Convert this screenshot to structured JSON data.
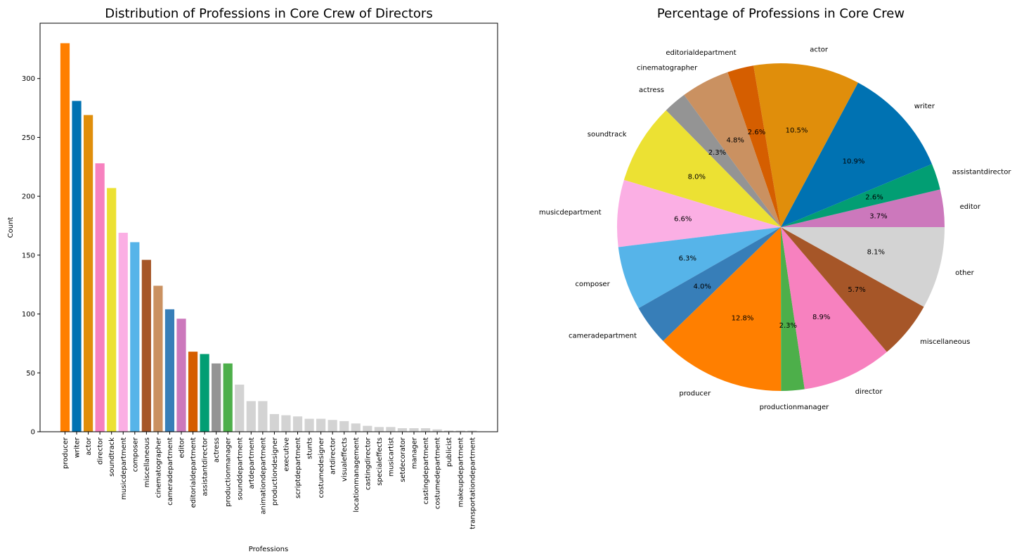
{
  "chart_data": [
    {
      "type": "bar",
      "title": "Distribution of Professions in Core Crew of Directors",
      "xlabel": "Professions",
      "ylabel": "Count",
      "ylim": [
        0,
        347
      ],
      "yticks": [
        0,
        50,
        100,
        150,
        200,
        250,
        300
      ],
      "grid": false,
      "categories": [
        "producer",
        "writer",
        "actor",
        "director",
        "soundtrack",
        "musicdepartment",
        "composer",
        "miscellaneous",
        "cinematographer",
        "cameradepartment",
        "editor",
        "editorialdepartment",
        "assistantdirector",
        "actress",
        "productionmanager",
        "sounddepartment",
        "artdepartment",
        "animationdepartment",
        "productiondesigner",
        "executive",
        "scriptdepartment",
        "stunts",
        "costumedesigner",
        "artdirector",
        "visualeffects",
        "locationmanagement",
        "castingdirector",
        "specialeffects",
        "musicartist",
        "setdecorator",
        "manager",
        "castingdepartment",
        "costumedepartment",
        "publicist",
        "makeupdepartment",
        "transportationdepartment"
      ],
      "values": [
        330,
        281,
        269,
        228,
        207,
        169,
        161,
        146,
        124,
        104,
        96,
        68,
        66,
        58,
        58,
        40,
        26,
        26,
        15,
        14,
        13,
        11,
        11,
        10,
        9,
        7,
        5,
        4,
        4,
        3,
        3,
        3,
        2,
        1,
        1,
        1
      ],
      "colors": [
        "#ff7f00",
        "#0072b2",
        "#e08e0b",
        "#f781bf",
        "#ece133",
        "#fbafe4",
        "#56b4e9",
        "#a65628",
        "#ca9161",
        "#377eb8",
        "#cc78bc",
        "#d55e00",
        "#029e73",
        "#949494",
        "#4daf4a",
        "#d3d3d3",
        "#d3d3d3",
        "#d3d3d3",
        "#d3d3d3",
        "#d3d3d3",
        "#d3d3d3",
        "#d3d3d3",
        "#d3d3d3",
        "#d3d3d3",
        "#d3d3d3",
        "#d3d3d3",
        "#d3d3d3",
        "#d3d3d3",
        "#d3d3d3",
        "#d3d3d3",
        "#d3d3d3",
        "#d3d3d3",
        "#d3d3d3",
        "#d3d3d3",
        "#d3d3d3",
        "#d3d3d3"
      ]
    },
    {
      "type": "pie",
      "title": "Percentage of Professions in Core Crew",
      "start_angle_deg": 0,
      "direction": "counterclockwise",
      "slices": [
        {
          "label": "editor",
          "value": 3.7,
          "pct_label": "3.7%",
          "color": "#cc78bc"
        },
        {
          "label": "assistantdirector",
          "value": 2.6,
          "pct_label": "2.6%",
          "color": "#029e73"
        },
        {
          "label": "writer",
          "value": 10.9,
          "pct_label": "10.9%",
          "color": "#0072b2"
        },
        {
          "label": "actor",
          "value": 10.5,
          "pct_label": "10.5%",
          "color": "#e08e0b"
        },
        {
          "label": "editorialdepartment",
          "value": 2.6,
          "pct_label": "2.6%",
          "color": "#d55e00"
        },
        {
          "label": "cinematographer",
          "value": 4.8,
          "pct_label": "4.8%",
          "color": "#ca9161"
        },
        {
          "label": "actress",
          "value": 2.3,
          "pct_label": "2.3%",
          "color": "#949494"
        },
        {
          "label": "soundtrack",
          "value": 8.0,
          "pct_label": "8.0%",
          "color": "#ece133"
        },
        {
          "label": "musicdepartment",
          "value": 6.6,
          "pct_label": "6.6%",
          "color": "#fbafe4"
        },
        {
          "label": "composer",
          "value": 6.3,
          "pct_label": "6.3%",
          "color": "#56b4e9"
        },
        {
          "label": "cameradepartment",
          "value": 4.0,
          "pct_label": "4.0%",
          "color": "#377eb8"
        },
        {
          "label": "producer",
          "value": 12.8,
          "pct_label": "12.8%",
          "color": "#ff7f00"
        },
        {
          "label": "productionmanager",
          "value": 2.3,
          "pct_label": "2.3%",
          "color": "#4daf4a"
        },
        {
          "label": "director",
          "value": 8.9,
          "pct_label": "8.9%",
          "color": "#f781bf"
        },
        {
          "label": "miscellaneous",
          "value": 5.7,
          "pct_label": "5.7%",
          "color": "#a65628"
        },
        {
          "label": "other",
          "value": 8.1,
          "pct_label": "8.1%",
          "color": "#d3d3d3"
        }
      ]
    }
  ]
}
